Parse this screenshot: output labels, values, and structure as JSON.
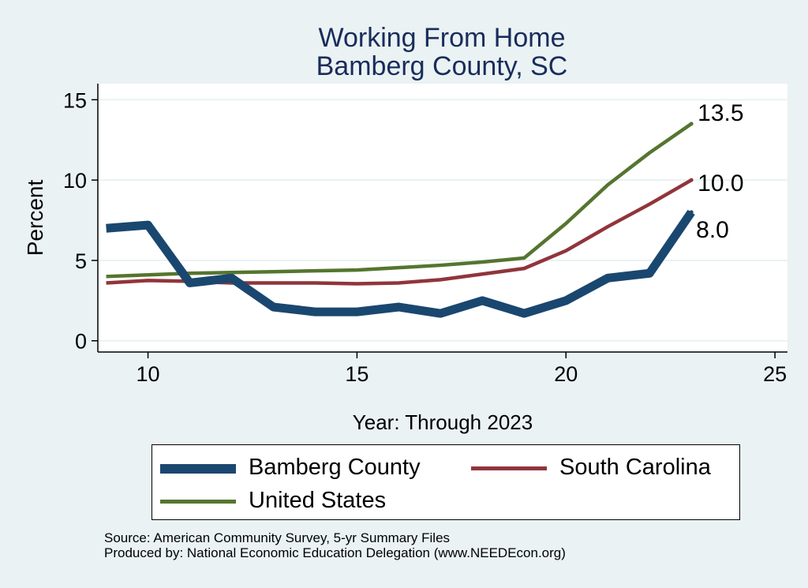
{
  "title_line1": "Working From Home",
  "title_line2": "Bamberg County, SC",
  "chart_data": {
    "type": "line",
    "xlabel": "Year: Through 2023",
    "ylabel": "Percent",
    "xlim": [
      8.8,
      25.3
    ],
    "ylim": [
      -0.7,
      16
    ],
    "xticks": [
      10,
      15,
      20,
      25
    ],
    "yticks": [
      0,
      5,
      10,
      15
    ],
    "grid": true,
    "legend_position": "bottom",
    "series": [
      {
        "name": "Bamberg County",
        "color": "#1a476f",
        "x": [
          9,
          10,
          11,
          12,
          13,
          14,
          15,
          16,
          17,
          18,
          19,
          20,
          21,
          22,
          23
        ],
        "y": [
          7.0,
          7.2,
          3.6,
          3.9,
          2.1,
          1.8,
          1.8,
          2.1,
          1.7,
          2.5,
          1.7,
          2.5,
          3.9,
          4.2,
          8.0
        ],
        "end_label": "8.0"
      },
      {
        "name": "South Carolina",
        "color": "#90353b",
        "x": [
          9,
          10,
          11,
          12,
          13,
          14,
          15,
          16,
          17,
          18,
          19,
          20,
          21,
          22,
          23
        ],
        "y": [
          3.6,
          3.75,
          3.7,
          3.6,
          3.6,
          3.6,
          3.55,
          3.6,
          3.8,
          4.15,
          4.5,
          5.6,
          7.1,
          8.5,
          10.0
        ],
        "end_label": "10.0"
      },
      {
        "name": "United States",
        "color": "#55752f",
        "x": [
          9,
          10,
          11,
          12,
          13,
          14,
          15,
          16,
          17,
          18,
          19,
          20,
          21,
          22,
          23
        ],
        "y": [
          4.0,
          4.1,
          4.2,
          4.25,
          4.3,
          4.35,
          4.4,
          4.55,
          4.7,
          4.9,
          5.15,
          7.3,
          9.7,
          11.7,
          13.5
        ],
        "end_label": "13.5"
      }
    ]
  },
  "legend": {
    "items": [
      {
        "label": "Bamberg County",
        "color": "#1a476f"
      },
      {
        "label": "South Carolina",
        "color": "#90353b"
      },
      {
        "label": "United States",
        "color": "#55752f"
      }
    ]
  },
  "source_line1": "Source: American Community Survey, 5-yr Summary Files",
  "source_line2": "Produced by: National Economic Education Delegation (www.NEEDEcon.org)"
}
